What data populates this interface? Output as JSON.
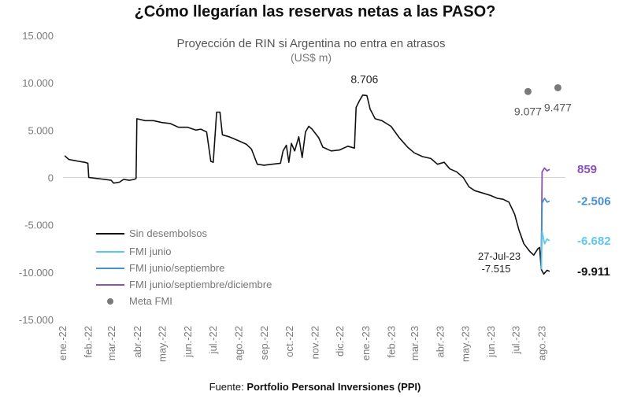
{
  "title": "¿Cómo llegarían las reservas netas a las PASO?",
  "footer": {
    "prefix": "Fuente: ",
    "source": "Portfolio Personal Inversiones (PPI)"
  },
  "chart_data": {
    "type": "line",
    "subtitle": "Proyección de RIN si Argentina no entra en atrasos",
    "unit": "(US$ m)",
    "ylim": [
      -15000,
      15000
    ],
    "yticks": [
      15000,
      10000,
      5000,
      0,
      -5000,
      -10000,
      -15000
    ],
    "ytick_labels": [
      "15.000",
      "10.000",
      "5.000",
      "0",
      "-5.000",
      "-10.000",
      "-15.000"
    ],
    "xlim": [
      "2022-01-01",
      "2023-08-31"
    ],
    "xticks": [
      "2022-01-01",
      "2022-02-01",
      "2022-03-01",
      "2022-04-01",
      "2022-05-01",
      "2022-06-01",
      "2022-07-01",
      "2022-08-01",
      "2022-09-01",
      "2022-10-01",
      "2022-11-01",
      "2022-12-01",
      "2023-01-01",
      "2023-02-01",
      "2023-03-01",
      "2023-04-01",
      "2023-05-01",
      "2023-06-01",
      "2023-07-01",
      "2023-08-01"
    ],
    "xtick_labels": [
      "ene.-22",
      "feb.-22",
      "mar.-22",
      "abr.-22",
      "may.-22",
      "jun.-22",
      "jul.-22",
      "ago.-22",
      "sep.-22",
      "oct.-22",
      "nov.-22",
      "dic.-22",
      "ene.-23",
      "feb.-23",
      "mar.-23",
      "abr.-23",
      "may.-23",
      "jun.-23",
      "jul.-23",
      "ago.-23"
    ],
    "grid": false,
    "legend_position": "bottom-left",
    "legend": [
      {
        "label": "Sin desembolsos",
        "color": "#111111",
        "kind": "line"
      },
      {
        "label": "FMI junio",
        "color": "#5ec8ec",
        "kind": "line"
      },
      {
        "label": "FMI junio/septiembre",
        "color": "#4a90c8",
        "kind": "line"
      },
      {
        "label": "FMI junio/septiembre/diciembre",
        "color": "#8a52b8",
        "kind": "line"
      },
      {
        "label": "Meta FMI",
        "color": "#7a7a7a",
        "kind": "dot"
      }
    ],
    "series": [
      {
        "name": "Sin desembolsos",
        "color": "#111111",
        "points": [
          [
            "2022-01-03",
            2300
          ],
          [
            "2022-01-08",
            1900
          ],
          [
            "2022-01-14",
            1800
          ],
          [
            "2022-01-20",
            1700
          ],
          [
            "2022-01-27",
            1600
          ],
          [
            "2022-01-31",
            1500
          ],
          [
            "2022-02-01",
            0
          ],
          [
            "2022-02-10",
            -100
          ],
          [
            "2022-02-20",
            -200
          ],
          [
            "2022-02-28",
            -300
          ],
          [
            "2022-03-03",
            -600
          ],
          [
            "2022-03-10",
            -500
          ],
          [
            "2022-03-15",
            -200
          ],
          [
            "2022-03-22",
            -300
          ],
          [
            "2022-03-28",
            -200
          ],
          [
            "2022-03-30",
            -100
          ],
          [
            "2022-03-31",
            6200
          ],
          [
            "2022-04-10",
            6000
          ],
          [
            "2022-04-20",
            6000
          ],
          [
            "2022-04-30",
            5800
          ],
          [
            "2022-05-10",
            5700
          ],
          [
            "2022-05-20",
            5300
          ],
          [
            "2022-05-31",
            5300
          ],
          [
            "2022-06-10",
            5000
          ],
          [
            "2022-06-16",
            5100
          ],
          [
            "2022-06-23",
            4800
          ],
          [
            "2022-06-28",
            1700
          ],
          [
            "2022-07-01",
            1600
          ],
          [
            "2022-07-05",
            6900
          ],
          [
            "2022-07-09",
            6900
          ],
          [
            "2022-07-12",
            4500
          ],
          [
            "2022-07-20",
            4300
          ],
          [
            "2022-07-31",
            3900
          ],
          [
            "2022-08-10",
            3500
          ],
          [
            "2022-08-16",
            3000
          ],
          [
            "2022-08-23",
            1400
          ],
          [
            "2022-08-31",
            1300
          ],
          [
            "2022-09-10",
            1400
          ],
          [
            "2022-09-20",
            1500
          ],
          [
            "2022-09-23",
            2800
          ],
          [
            "2022-09-27",
            3400
          ],
          [
            "2022-09-30",
            1600
          ],
          [
            "2022-10-03",
            3600
          ],
          [
            "2022-10-07",
            2800
          ],
          [
            "2022-10-12",
            4300
          ],
          [
            "2022-10-16",
            2100
          ],
          [
            "2022-10-20",
            4800
          ],
          [
            "2022-10-24",
            5400
          ],
          [
            "2022-10-28",
            5100
          ],
          [
            "2022-11-05",
            4200
          ],
          [
            "2022-11-10",
            3200
          ],
          [
            "2022-11-20",
            2800
          ],
          [
            "2022-11-30",
            2900
          ],
          [
            "2022-12-10",
            3300
          ],
          [
            "2022-12-18",
            3100
          ],
          [
            "2022-12-20",
            7400
          ],
          [
            "2022-12-24",
            8100
          ],
          [
            "2022-12-28",
            8700
          ],
          [
            "2023-01-02",
            8650
          ],
          [
            "2023-01-06",
            7200
          ],
          [
            "2023-01-12",
            6200
          ],
          [
            "2023-01-20",
            6000
          ],
          [
            "2023-01-31",
            5400
          ],
          [
            "2023-02-10",
            4200
          ],
          [
            "2023-02-20",
            3200
          ],
          [
            "2023-02-28",
            2600
          ],
          [
            "2023-03-10",
            2200
          ],
          [
            "2023-03-20",
            2000
          ],
          [
            "2023-03-28",
            1400
          ],
          [
            "2023-04-05",
            1600
          ],
          [
            "2023-04-12",
            900
          ],
          [
            "2023-04-20",
            600
          ],
          [
            "2023-04-28",
            0
          ],
          [
            "2023-05-05",
            -1000
          ],
          [
            "2023-05-12",
            -1400
          ],
          [
            "2023-05-20",
            -1600
          ],
          [
            "2023-05-31",
            -1900
          ],
          [
            "2023-06-08",
            -2200
          ],
          [
            "2023-06-15",
            -2300
          ],
          [
            "2023-06-22",
            -2600
          ],
          [
            "2023-06-29",
            -3900
          ],
          [
            "2023-07-04",
            -5500
          ],
          [
            "2023-07-10",
            -7000
          ],
          [
            "2023-07-17",
            -7800
          ],
          [
            "2023-07-22",
            -8200
          ],
          [
            "2023-07-27",
            -7515
          ],
          [
            "2023-07-29",
            -7400
          ],
          [
            "2023-07-31",
            -9700
          ],
          [
            "2023-08-03",
            -10200
          ],
          [
            "2023-08-07",
            -9800
          ],
          [
            "2023-08-10",
            -9911
          ]
        ]
      },
      {
        "name": "FMI junio/septiembre/diciembre",
        "color": "#8a52b8",
        "points": [
          [
            "2023-07-31",
            -9700
          ],
          [
            "2023-08-01",
            600
          ],
          [
            "2023-08-04",
            1000
          ],
          [
            "2023-08-07",
            700
          ],
          [
            "2023-08-10",
            859
          ]
        ]
      },
      {
        "name": "FMI junio/septiembre",
        "color": "#4a90c8",
        "points": [
          [
            "2023-07-31",
            -9700
          ],
          [
            "2023-08-01",
            -2700
          ],
          [
            "2023-08-04",
            -2200
          ],
          [
            "2023-08-07",
            -2600
          ],
          [
            "2023-08-10",
            -2506
          ]
        ]
      },
      {
        "name": "FMI junio",
        "color": "#5ec8ec",
        "points": [
          [
            "2023-07-31",
            -9700
          ],
          [
            "2023-08-01",
            -5700
          ],
          [
            "2023-08-04",
            -7000
          ],
          [
            "2023-08-07",
            -6500
          ],
          [
            "2023-08-10",
            -6682
          ]
        ]
      }
    ],
    "meta_points": [
      {
        "date": "2023-07-15",
        "value": 9077,
        "label": "9.077",
        "color": "#7a7a7a"
      },
      {
        "date": "2023-08-20",
        "value": 9477,
        "label": "9.477",
        "color": "#7a7a7a"
      }
    ],
    "annotations": {
      "peak": {
        "date": "2023-01-01",
        "value": 8706,
        "label": "8.706"
      },
      "date_label": "27-Jul-23",
      "date_value": "-7.515",
      "end_labels": [
        {
          "value": 859,
          "label": "859",
          "color": "#8a52b8"
        },
        {
          "value": -2506,
          "label": "-2.506",
          "color": "#4a90c8"
        },
        {
          "value": -6682,
          "label": "-6.682",
          "color": "#5ec8ec"
        },
        {
          "value": -9911,
          "label": "-9.911",
          "color": "#111111"
        }
      ]
    }
  }
}
